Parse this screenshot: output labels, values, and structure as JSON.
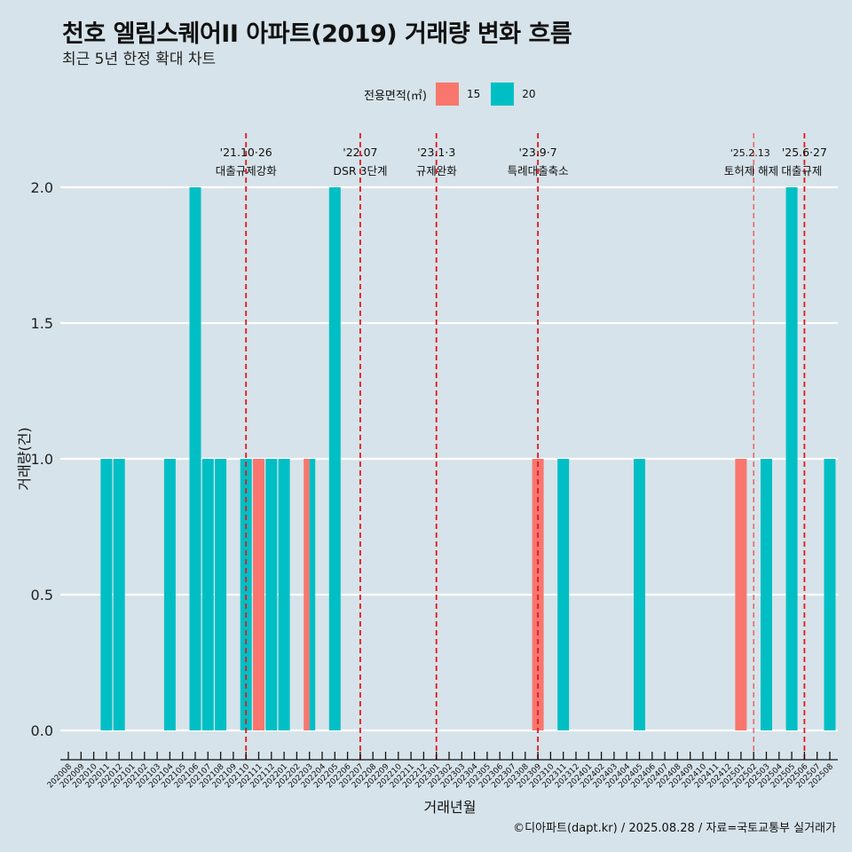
{
  "header": {
    "title": "천호 엘림스퀘어II 아파트(2019) 거래량 변화 흐름",
    "subtitle": "최근 5년 한정 확대 차트"
  },
  "legend": {
    "title": "전용면적(㎡)",
    "items": [
      {
        "label": "15",
        "color": "#f8766d"
      },
      {
        "label": "20",
        "color": "#00bfc4"
      }
    ]
  },
  "caption": "©디아파트(dapt.kr) / 2025.08.28 / 자료=국토교통부 실거래가",
  "chart_data": {
    "type": "bar",
    "title": "천호 엘림스퀘어II 아파트(2019) 거래량 변화 흐름",
    "subtitle": "최근 5년 한정 확대 차트",
    "xlabel": "거래년월",
    "ylabel": "거래량(건)",
    "ylim": [
      0,
      2
    ],
    "yticks": [
      "0.0",
      "0.5",
      "1.0",
      "1.5",
      "2.0"
    ],
    "ytick_values": [
      0,
      0.5,
      1.0,
      1.5,
      2.0
    ],
    "grid": true,
    "legend_position": "top",
    "categories": [
      "202008",
      "202009",
      "202010",
      "202011",
      "202012",
      "202101",
      "202102",
      "202103",
      "202104",
      "202105",
      "202106",
      "202107",
      "202108",
      "202109",
      "202110",
      "202111",
      "202112",
      "202201",
      "202202",
      "202203",
      "202204",
      "202205",
      "202206",
      "202207",
      "202208",
      "202209",
      "202210",
      "202211",
      "202212",
      "202301",
      "202302",
      "202303",
      "202304",
      "202305",
      "202306",
      "202307",
      "202308",
      "202309",
      "202310",
      "202311",
      "202312",
      "202401",
      "202402",
      "202403",
      "202404",
      "202405",
      "202406",
      "202407",
      "202408",
      "202409",
      "202410",
      "202411",
      "202412",
      "202501",
      "202502",
      "202503",
      "202504",
      "202505",
      "202506",
      "202507",
      "202508"
    ],
    "series": [
      {
        "name": "15",
        "color": "#f8766d",
        "points": [
          {
            "x": "202111",
            "y": 1
          },
          {
            "x": "202203",
            "y": 1
          },
          {
            "x": "202309",
            "y": 1
          },
          {
            "x": "202501",
            "y": 1
          }
        ]
      },
      {
        "name": "20",
        "color": "#00bfc4",
        "points": [
          {
            "x": "202011",
            "y": 1
          },
          {
            "x": "202012",
            "y": 1
          },
          {
            "x": "202104",
            "y": 1
          },
          {
            "x": "202106",
            "y": 2
          },
          {
            "x": "202107",
            "y": 1
          },
          {
            "x": "202108",
            "y": 1
          },
          {
            "x": "202110",
            "y": 1
          },
          {
            "x": "202112",
            "y": 1
          },
          {
            "x": "202201",
            "y": 1
          },
          {
            "x": "202203",
            "y": 1
          },
          {
            "x": "202205",
            "y": 2
          },
          {
            "x": "202311",
            "y": 1
          },
          {
            "x": "202405",
            "y": 1
          },
          {
            "x": "202503",
            "y": 1
          },
          {
            "x": "202505",
            "y": 2
          },
          {
            "x": "202508",
            "y": 1
          }
        ]
      }
    ],
    "annotations": [
      {
        "x": "202110",
        "date": "'21.10·26",
        "label": "대출규제강화",
        "style": "bold"
      },
      {
        "x": "202207",
        "date": "'22.07",
        "label": "DSR 3단계",
        "style": "bold"
      },
      {
        "x": "202301",
        "date": "'23.1·3",
        "label": "규제완화",
        "style": "bold"
      },
      {
        "x": "202309",
        "date": "'23.9·7",
        "label": "특례대출축소",
        "style": "bold"
      },
      {
        "x": "202502",
        "date": "'25.2.13",
        "label": "토허제 해제",
        "style": "thin"
      },
      {
        "x": "202506",
        "date": "'25.6·27",
        "label": "대출규제",
        "style": "bold"
      }
    ]
  }
}
